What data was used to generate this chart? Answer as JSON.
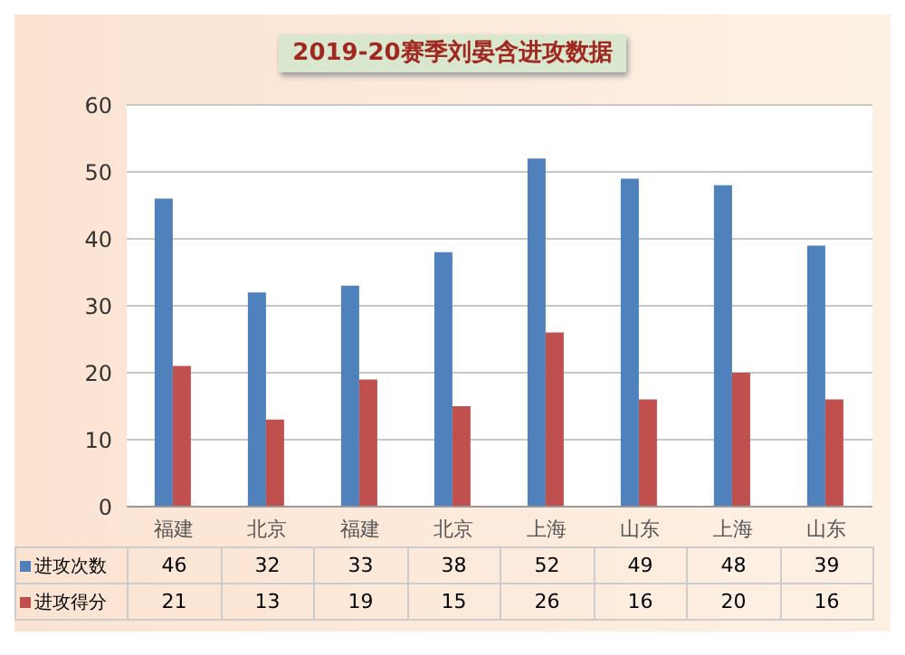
{
  "chart_data": {
    "type": "bar",
    "title": "2019-20赛季刘晏含进攻数据",
    "categories": [
      "福建",
      "北京",
      "福建",
      "北京",
      "上海",
      "山东",
      "上海",
      "山东"
    ],
    "series": [
      {
        "name": "进攻次数",
        "color": "#4f81bd",
        "values": [
          46,
          32,
          33,
          38,
          52,
          49,
          48,
          39
        ]
      },
      {
        "name": "进攻得分",
        "color": "#c0504d",
        "values": [
          21,
          13,
          19,
          15,
          26,
          16,
          20,
          16
        ]
      }
    ],
    "ylim": [
      0,
      60
    ],
    "yticks": [
      0,
      10,
      20,
      30,
      40,
      50,
      60
    ],
    "grid": "y",
    "legend": "bottom",
    "data_labels": true
  }
}
